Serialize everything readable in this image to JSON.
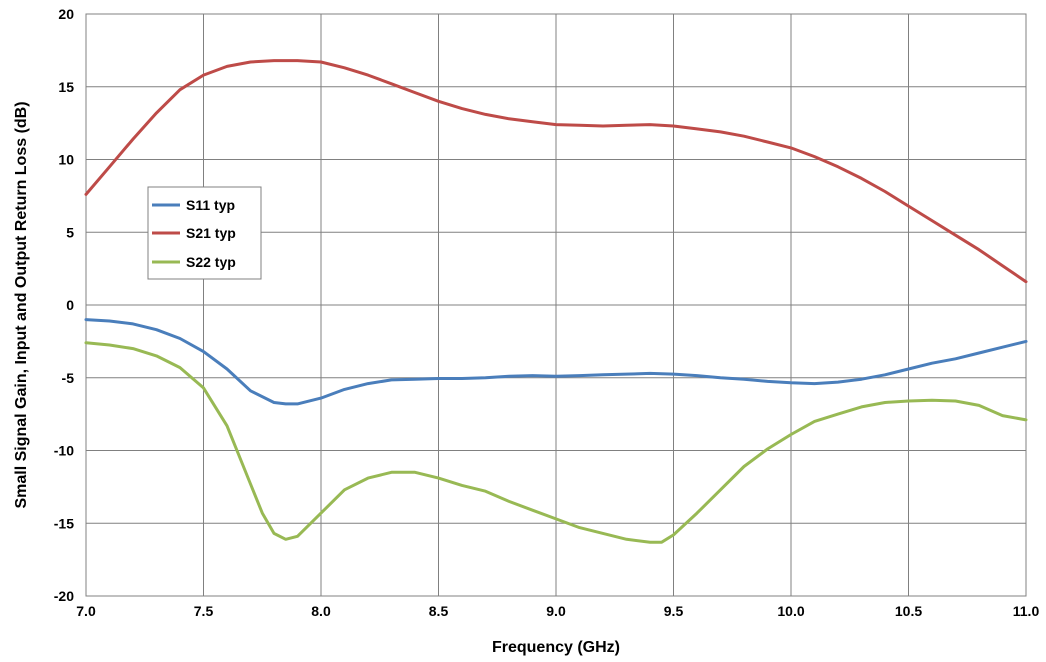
{
  "chart_data": {
    "type": "line",
    "title": "",
    "xlabel": "Frequency (GHz)",
    "ylabel": "Small Signal Gain, Input and Output Return Loss (dB)",
    "xlim": [
      7.0,
      11.0
    ],
    "ylim": [
      -20,
      20
    ],
    "x_ticks": [
      "7.0",
      "7.5",
      "8.0",
      "8.5",
      "9.0",
      "9.5",
      "10.0",
      "10.5",
      "11.0"
    ],
    "y_ticks": [
      "20",
      "15",
      "10",
      "5",
      "0",
      "-5",
      "-10",
      "-15",
      "-20"
    ],
    "grid": true,
    "legend_position": "left",
    "series": [
      {
        "name": "S11 typ",
        "color": "#4a7ebb",
        "x": [
          7.0,
          7.1,
          7.2,
          7.3,
          7.4,
          7.5,
          7.6,
          7.7,
          7.8,
          7.85,
          7.9,
          8.0,
          8.1,
          8.2,
          8.3,
          8.4,
          8.5,
          8.6,
          8.7,
          8.8,
          8.9,
          9.0,
          9.1,
          9.2,
          9.3,
          9.4,
          9.5,
          9.6,
          9.7,
          9.8,
          9.9,
          10.0,
          10.1,
          10.2,
          10.3,
          10.4,
          10.5,
          10.6,
          10.7,
          10.8,
          10.9,
          11.0
        ],
        "y": [
          -1.0,
          -1.1,
          -1.3,
          -1.7,
          -2.3,
          -3.2,
          -4.4,
          -5.9,
          -6.7,
          -6.8,
          -6.8,
          -6.4,
          -5.8,
          -5.4,
          -5.15,
          -5.1,
          -5.05,
          -5.05,
          -5.0,
          -4.9,
          -4.85,
          -4.9,
          -4.85,
          -4.8,
          -4.75,
          -4.7,
          -4.75,
          -4.85,
          -5.0,
          -5.1,
          -5.25,
          -5.35,
          -5.4,
          -5.3,
          -5.1,
          -4.8,
          -4.4,
          -4.0,
          -3.7,
          -3.3,
          -2.9,
          -2.5
        ]
      },
      {
        "name": "S21 typ",
        "color": "#be4b48",
        "x": [
          7.0,
          7.1,
          7.2,
          7.3,
          7.4,
          7.5,
          7.6,
          7.7,
          7.8,
          7.85,
          7.9,
          8.0,
          8.1,
          8.2,
          8.3,
          8.4,
          8.5,
          8.6,
          8.7,
          8.8,
          8.9,
          9.0,
          9.1,
          9.2,
          9.3,
          9.4,
          9.5,
          9.6,
          9.7,
          9.8,
          9.9,
          10.0,
          10.1,
          10.2,
          10.3,
          10.4,
          10.5,
          10.6,
          10.7,
          10.8,
          10.9,
          11.0
        ],
        "y": [
          7.6,
          9.5,
          11.4,
          13.2,
          14.8,
          15.8,
          16.4,
          16.7,
          16.8,
          16.8,
          16.8,
          16.7,
          16.3,
          15.8,
          15.2,
          14.6,
          14.0,
          13.5,
          13.1,
          12.8,
          12.6,
          12.4,
          12.35,
          12.3,
          12.35,
          12.4,
          12.3,
          12.1,
          11.9,
          11.6,
          11.2,
          10.8,
          10.2,
          9.5,
          8.7,
          7.8,
          6.8,
          5.8,
          4.8,
          3.8,
          2.7,
          1.6
        ]
      },
      {
        "name": "S22 typ",
        "color": "#98b954",
        "x": [
          7.0,
          7.1,
          7.2,
          7.3,
          7.4,
          7.5,
          7.6,
          7.7,
          7.75,
          7.8,
          7.85,
          7.9,
          8.0,
          8.1,
          8.2,
          8.3,
          8.4,
          8.5,
          8.6,
          8.7,
          8.8,
          8.9,
          9.0,
          9.1,
          9.2,
          9.3,
          9.4,
          9.45,
          9.5,
          9.6,
          9.7,
          9.8,
          9.9,
          10.0,
          10.1,
          10.2,
          10.3,
          10.4,
          10.5,
          10.6,
          10.7,
          10.8,
          10.9,
          11.0
        ],
        "y": [
          -2.6,
          -2.75,
          -3.0,
          -3.5,
          -4.3,
          -5.7,
          -8.3,
          -12.3,
          -14.3,
          -15.7,
          -16.1,
          -15.9,
          -14.3,
          -12.7,
          -11.9,
          -11.5,
          -11.5,
          -11.9,
          -12.4,
          -12.8,
          -13.5,
          -14.1,
          -14.7,
          -15.3,
          -15.7,
          -16.1,
          -16.3,
          -16.3,
          -15.8,
          -14.3,
          -12.7,
          -11.1,
          -9.9,
          -8.9,
          -8.0,
          -7.5,
          -7.0,
          -6.7,
          -6.6,
          -6.55,
          -6.6,
          -6.9,
          -7.6,
          -7.9
        ]
      }
    ]
  }
}
